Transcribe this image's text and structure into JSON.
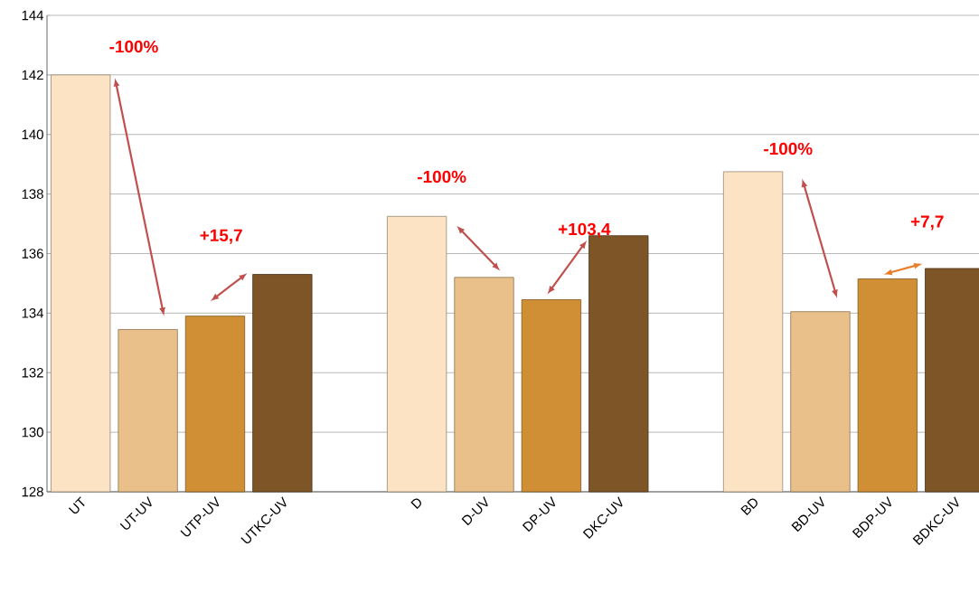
{
  "chart_data": {
    "type": "bar",
    "categories": [
      "UT",
      "UT-UV",
      "UTP-UV",
      "UTKC-UV",
      null,
      "D",
      "D-UV",
      "DP-UV",
      "DKC-UV",
      null,
      "BD",
      "BD-UV",
      "BDP-UV",
      "BDKC-UV"
    ],
    "values": [
      142.0,
      133.45,
      133.9,
      135.3,
      null,
      137.25,
      135.2,
      134.45,
      136.6,
      null,
      138.75,
      134.05,
      135.15,
      135.5
    ],
    "colors": [
      "#fbe3c3",
      "#eac08a",
      "#d08f35",
      "#7e5526",
      null,
      "#fbe3c3",
      "#eac08a",
      "#d08f35",
      "#7e5526",
      null,
      "#fbe3c3",
      "#eac08a",
      "#d08f35",
      "#7e5526"
    ],
    "ylim": [
      128,
      144
    ],
    "yticks": [
      128,
      130,
      132,
      134,
      136,
      138,
      140,
      142,
      144
    ],
    "grid": "y",
    "annotations": [
      "-100%",
      "+15,7",
      "-100%",
      "+103,4",
      "-100%",
      "+7,7"
    ]
  }
}
